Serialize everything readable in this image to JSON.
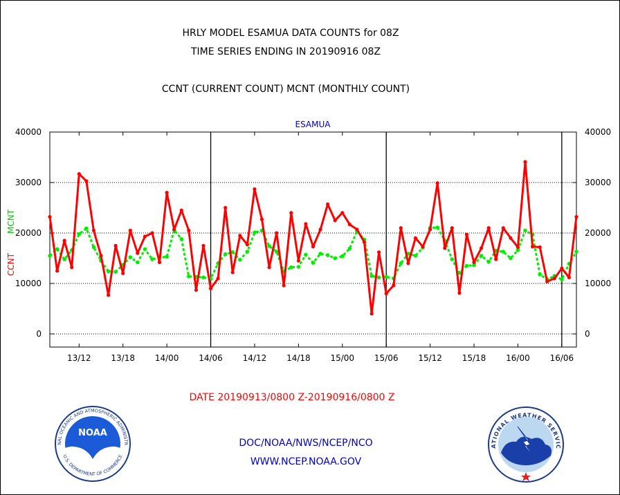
{
  "header": {
    "title_line1": "HRLY MODEL ESAMUA DATA COUNTS for 08Z",
    "title_line2": "TIME SERIES ENDING IN 20190916 08Z",
    "subtitle": "CCNT (CURRENT COUNT) MCNT (MONTHLY COUNT)"
  },
  "footer": {
    "date_range": "DATE 20190913/0800 Z-20190916/0800 Z",
    "org_line": "DOC/NOAA/NWS/NCEP/NCO",
    "url_line": "WWW.NCEP.NOAA.GOV"
  },
  "logos": {
    "noaa_center": "NOAA",
    "noaa_ring": "NATIONAL OCEANIC AND ATMOSPHERIC ADMINISTRATION",
    "noaa_ring_bottom": "U.S. DEPARTMENT OF COMMERCE",
    "nws_ring": "NATIONAL WEATHER SERVICE"
  },
  "colors": {
    "ccnt": "#ff0000",
    "mcnt": "#00ee00",
    "title": "#000000",
    "footer_date": "#ff0000",
    "footer_links": "#0000cc",
    "panel_label": "#0000cc"
  },
  "chart_data": {
    "type": "line",
    "title": "ESAMUA",
    "ylabel_left_1": "CCNT",
    "ylabel_left_2": "MCNT",
    "ylim": [
      -2600,
      40000
    ],
    "y_ticks": [
      0,
      10000,
      20000,
      30000,
      40000
    ],
    "y_tick_labels": [
      "0",
      "10000",
      "20000",
      "30000",
      "40000"
    ],
    "x_tick_labels": [
      "13/12",
      "13/18",
      "14/00",
      "14/06",
      "14/12",
      "14/18",
      "15/00",
      "15/06",
      "15/12",
      "15/18",
      "16/00",
      "16/06"
    ],
    "x_tick_hours": [
      4,
      10,
      16,
      22,
      28,
      34,
      40,
      46,
      52,
      58,
      64,
      70
    ],
    "x_range_hours": [
      0,
      72
    ],
    "day_boundaries_hours": [
      22,
      46,
      70
    ],
    "grid": true,
    "series": [
      {
        "name": "CCNT",
        "style": "solid",
        "values": [
          23200,
          12500,
          18500,
          13200,
          31700,
          30300,
          20500,
          15500,
          7700,
          17500,
          12000,
          20500,
          16000,
          19300,
          20000,
          14200,
          28000,
          20700,
          24500,
          20500,
          8700,
          17500,
          9000,
          11000,
          25000,
          12200,
          19500,
          17700,
          28700,
          22700,
          13200,
          20000,
          9600,
          24000,
          14500,
          21800,
          17300,
          20700,
          25700,
          22500,
          24000,
          21700,
          20700,
          18200,
          4000,
          16200,
          8000,
          9600,
          21000,
          14000,
          19000,
          17300,
          20700,
          29900,
          17000,
          21000,
          8100,
          19700,
          14200,
          17000,
          21000,
          14800,
          21000,
          19000,
          17200,
          34100,
          17300,
          17200,
          10400,
          11000,
          13000,
          11200,
          23200
        ]
      },
      {
        "name": "MCNT",
        "style": "dotted",
        "values": [
          15500,
          16800,
          14800,
          16600,
          19800,
          20900,
          17200,
          14500,
          12400,
          12300,
          13700,
          15200,
          14200,
          16800,
          14800,
          15100,
          15300,
          20600,
          18800,
          11400,
          11300,
          11200,
          10900,
          14000,
          15800,
          16200,
          14700,
          16300,
          20100,
          20500,
          17400,
          16300,
          12400,
          13200,
          13300,
          15700,
          14100,
          15900,
          15600,
          15000,
          15400,
          16900,
          20400,
          18700,
          11500,
          11200,
          11300,
          11000,
          14000,
          15900,
          15500,
          17100,
          21000,
          21100,
          18500,
          14800,
          12100,
          13500,
          13600,
          15500,
          14300,
          16500,
          16300,
          15000,
          16600,
          20500,
          19700,
          11800,
          10800,
          11500,
          10800,
          13900,
          16300
        ]
      }
    ]
  }
}
